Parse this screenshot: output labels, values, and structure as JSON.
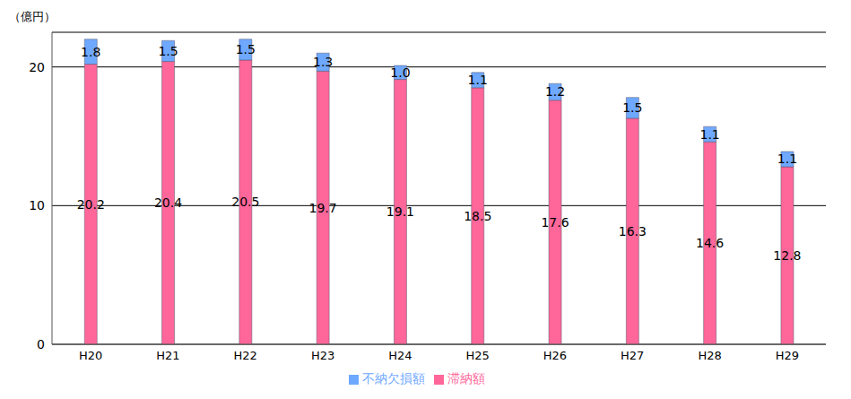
{
  "chart_data": {
    "type": "bar",
    "stacked": true,
    "y_label": "（億円）",
    "categories": [
      "H20",
      "H21",
      "H22",
      "H23",
      "H24",
      "H25",
      "H26",
      "H27",
      "H28",
      "H29"
    ],
    "series": [
      {
        "name": "滞納額",
        "color": "#ff6699",
        "values": [
          20.2,
          20.4,
          20.5,
          19.7,
          19.1,
          18.5,
          17.6,
          16.3,
          14.6,
          12.8
        ]
      },
      {
        "name": "不納欠損額",
        "color": "#6fa8ff",
        "values": [
          1.8,
          1.5,
          1.5,
          1.3,
          1.0,
          1.1,
          1.2,
          1.5,
          1.1,
          1.1
        ],
        "value_labels": [
          "1.8",
          "1.5",
          "1.5",
          "1.3",
          "1.0",
          "1.1",
          "1.2",
          "1.5",
          "1.1",
          "1.1"
        ]
      }
    ],
    "ylim": [
      0,
      22.5
    ],
    "yticks": [
      0,
      10,
      20
    ],
    "grid": true,
    "data_labels": true,
    "legend": "bottom"
  }
}
